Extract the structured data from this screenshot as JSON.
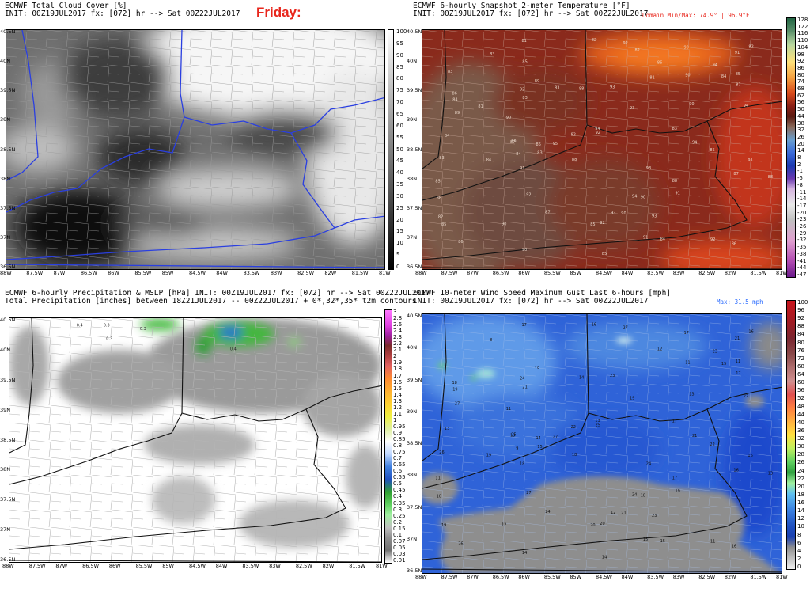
{
  "friday_label": "Friday:",
  "panels": {
    "cloud": {
      "title": "ECMWF Total Cloud Cover [%]",
      "init": "INIT: 00Z19JUL2017 fx: [072] hr --> Sat 00Z22JUL2017",
      "colorbar_labels": [
        "100",
        "95",
        "90",
        "85",
        "80",
        "75",
        "70",
        "65",
        "60",
        "55",
        "50",
        "45",
        "40",
        "35",
        "30",
        "25",
        "20",
        "15",
        "10",
        "5",
        "0"
      ],
      "lon_labels": [
        "88W",
        "87.5W",
        "87W",
        "86.5W",
        "86W",
        "85.5W",
        "85W",
        "84.5W",
        "84W",
        "83.5W",
        "83W",
        "82.5W",
        "82W",
        "81.5W",
        "81W"
      ],
      "lat_labels": [
        "40.5N",
        "40N",
        "39.5N",
        "39N",
        "38.5N",
        "38N",
        "37.5N",
        "37N",
        "36.5N"
      ]
    },
    "temp": {
      "title": "ECMWF 6-hourly Snapshot 2-meter Temperature [°F]",
      "init": "INIT: 00Z19JUL2017 fx: [072] hr --> Sat 00Z22JUL2017",
      "note": "Domain Min/Max: 74.9° | 96.9°F",
      "colorbar_labels": [
        "128",
        "122",
        "116",
        "110",
        "104",
        "98",
        "92",
        "86",
        "80",
        "74",
        "68",
        "62",
        "56",
        "50",
        "44",
        "38",
        "32",
        "26",
        "20",
        "14",
        "8",
        "2",
        "-1",
        "-5",
        "-8",
        "-11",
        "-14",
        "-17",
        "-20",
        "-23",
        "-26",
        "-29",
        "-32",
        "-35",
        "-38",
        "-41",
        "-44",
        "-47"
      ],
      "lon_labels": [
        "88W",
        "87.5W",
        "87W",
        "86.5W",
        "86W",
        "85.5W",
        "85W",
        "84.5W",
        "84W",
        "83.5W",
        "83W",
        "82.5W",
        "82W",
        "81.5W",
        "81W"
      ],
      "lat_labels": [
        "40.5N",
        "40N",
        "39.5N",
        "39N",
        "38.5N",
        "38N",
        "37.5N",
        "37N",
        "36.5N"
      ],
      "point_values": [
        "92",
        "92",
        "93",
        "94",
        "95",
        "93",
        "92",
        "91",
        "91",
        "90",
        "88",
        "89",
        "92",
        "92",
        "93",
        "94",
        "94",
        "94",
        "93",
        "91",
        "90",
        "87",
        "86",
        "87",
        "89",
        "90",
        "85",
        "85",
        "83",
        "84",
        "82",
        "85",
        "86",
        "87",
        "81",
        "84",
        "83",
        "83",
        "85",
        "84",
        "82",
        "88",
        "83",
        "85",
        "85",
        "88",
        "89",
        "90",
        "90",
        "84",
        "90",
        "86",
        "88",
        "86",
        "91",
        "92",
        "91",
        "94",
        "93",
        "90",
        "90",
        "87",
        "86",
        "83",
        "84",
        "88",
        "84",
        "82",
        "81",
        "83",
        "85",
        "83",
        "81",
        "82",
        "82"
      ]
    },
    "precip": {
      "title": "ECMWF 6-hourly Precipitation & MSLP [hPa] INIT: 00Z19JUL2017 fx: [072] hr --> Sat 00Z22JUL2017",
      "subtitle": "Total Precipitation [inches] between 18Z21JUL2017 -- 00Z22JUL2017 + 0*,32*,35* t2m contours",
      "colorbar_labels": [
        "3",
        "2.8",
        "2.6",
        "2.4",
        "2.3",
        "2.2",
        "2.1",
        "2",
        "1.9",
        "1.8",
        "1.7",
        "1.6",
        "1.5",
        "1.4",
        "1.3",
        "1.2",
        "1.1",
        "1",
        "0.95",
        "0.9",
        "0.85",
        "0.8",
        "0.75",
        "0.7",
        "0.65",
        "0.6",
        "0.55",
        "0.5",
        "0.45",
        "0.4",
        "0.35",
        "0.3",
        "0.25",
        "0.2",
        "0.15",
        "0.1",
        "0.07",
        "0.05",
        "0.03",
        "0.01"
      ],
      "lon_labels": [
        "88W",
        "87.5W",
        "87W",
        "86.5W",
        "86W",
        "85.5W",
        "85W",
        "84.5W",
        "84W",
        "83.5W",
        "83W",
        "82.5W",
        "82W",
        "81.5W",
        "81W"
      ],
      "lat_labels": [
        "40.5N",
        "40N",
        "39.5N",
        "39N",
        "38.5N",
        "38N",
        "37.5N",
        "37N",
        "36.5N"
      ],
      "point_values": [
        "0.4",
        "0.4",
        "0.3",
        "0.3",
        "0.3"
      ]
    },
    "gust": {
      "title": "ECMWF 10-meter Wind Speed Maximum Gust Last 6-hours [mph]",
      "init": "INIT: 00Z19JUL2017 fx: [072] hr --> Sat 00Z22JUL2017",
      "note": "Max: 31.5 mph",
      "colorbar_labels": [
        "100",
        "96",
        "92",
        "88",
        "84",
        "80",
        "76",
        "72",
        "68",
        "64",
        "60",
        "56",
        "52",
        "48",
        "44",
        "40",
        "36",
        "32",
        "30",
        "28",
        "26",
        "24",
        "22",
        "20",
        "18",
        "16",
        "14",
        "12",
        "10",
        "8",
        "6",
        "4",
        "2",
        "0"
      ],
      "lon_labels": [
        "88W",
        "87.5W",
        "87W",
        "86.5W",
        "86W",
        "85.5W",
        "85W",
        "84.5W",
        "84W",
        "83.5W",
        "83W",
        "82.5W",
        "82W",
        "81.5W",
        "81W"
      ],
      "lat_labels": [
        "40.5N",
        "40N",
        "39.5N",
        "39N",
        "38.5N",
        "38N",
        "37.5N",
        "37N",
        "36.5N"
      ],
      "point_values": [
        "27",
        "25",
        "23",
        "24",
        "27",
        "24",
        "20",
        "21",
        "19",
        "18",
        "18",
        "25",
        "27",
        "24",
        "23",
        "23",
        "21",
        "22",
        "19",
        "18",
        "17",
        "16",
        "26",
        "24",
        "27",
        "21",
        "19",
        "20",
        "26",
        "19",
        "22",
        "22",
        "18",
        "18",
        "17",
        "19",
        "21",
        "17",
        "14",
        "15",
        "16",
        "17",
        "15",
        "11",
        "11",
        "13",
        "15",
        "13",
        "12",
        "13",
        "14",
        "14",
        "14",
        "16",
        "15",
        "11",
        "16",
        "13",
        "12",
        "11",
        "11",
        "17",
        "12",
        "8",
        "9",
        "10",
        "15",
        "16"
      ]
    }
  },
  "colors": {
    "title_red": "#e8261c",
    "note_blue": "#2a6bff",
    "state_line_blue": "#2a3fe0"
  }
}
